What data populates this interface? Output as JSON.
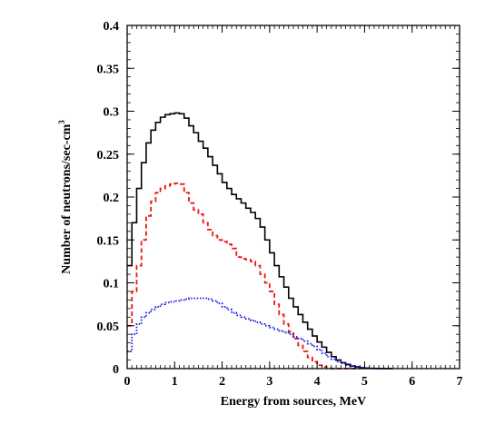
{
  "chart_data": {
    "type": "line",
    "title": "",
    "xlabel": "Energy from sources, MeV",
    "ylabel_main": "Number of neutrons/sec-cm",
    "ylabel_sup": "3",
    "xlim": [
      0,
      7
    ],
    "ylim": [
      0,
      0.4
    ],
    "x_ticks": [
      "0",
      "1",
      "2",
      "3",
      "4",
      "5",
      "6",
      "7"
    ],
    "y_ticks": [
      "0",
      "0.05",
      "0.1",
      "0.15",
      "0.2",
      "0.25",
      "0.3",
      "0.35",
      "0.4"
    ],
    "bin_width": 0.1,
    "grid": false,
    "series": [
      {
        "color": "#000000",
        "style": "solid",
        "x": [
          0.0,
          0.1,
          0.2,
          0.3,
          0.4,
          0.5,
          0.6,
          0.7,
          0.8,
          0.9,
          1.0,
          1.1,
          1.2,
          1.3,
          1.4,
          1.5,
          1.6,
          1.7,
          1.8,
          1.9,
          2.0,
          2.1,
          2.2,
          2.3,
          2.4,
          2.5,
          2.6,
          2.7,
          2.8,
          2.9,
          3.0,
          3.1,
          3.2,
          3.3,
          3.4,
          3.5,
          3.6,
          3.7,
          3.8,
          3.9,
          4.0,
          4.1,
          4.2,
          4.3,
          4.4,
          4.5,
          4.6,
          4.7,
          4.8,
          4.9,
          5.0,
          5.1,
          5.2,
          5.3,
          5.4,
          5.5
        ],
        "y": [
          0.12,
          0.17,
          0.21,
          0.24,
          0.263,
          0.278,
          0.287,
          0.293,
          0.296,
          0.297,
          0.298,
          0.297,
          0.292,
          0.283,
          0.275,
          0.265,
          0.257,
          0.247,
          0.237,
          0.227,
          0.217,
          0.21,
          0.203,
          0.198,
          0.193,
          0.187,
          0.182,
          0.175,
          0.165,
          0.15,
          0.135,
          0.12,
          0.107,
          0.095,
          0.082,
          0.072,
          0.063,
          0.054,
          0.046,
          0.038,
          0.031,
          0.025,
          0.019,
          0.014,
          0.01,
          0.007,
          0.005,
          0.003,
          0.002,
          0.001,
          0.0006,
          0.0003,
          0.0002,
          0.0001,
          5e-05,
          0.0
        ]
      },
      {
        "color": "#e8180f",
        "style": "dashed",
        "x": [
          0.0,
          0.1,
          0.2,
          0.3,
          0.4,
          0.5,
          0.6,
          0.7,
          0.8,
          0.9,
          1.0,
          1.1,
          1.2,
          1.3,
          1.4,
          1.5,
          1.6,
          1.7,
          1.8,
          1.9,
          2.0,
          2.1,
          2.2,
          2.3,
          2.4,
          2.5,
          2.6,
          2.7,
          2.8,
          2.9,
          3.0,
          3.1,
          3.2,
          3.3,
          3.4,
          3.5,
          3.6,
          3.7,
          3.8,
          3.9,
          4.0,
          4.1,
          4.2,
          4.3,
          4.4,
          4.5,
          4.6,
          4.7,
          4.8
        ],
        "y": [
          0.05,
          0.09,
          0.12,
          0.15,
          0.178,
          0.195,
          0.205,
          0.21,
          0.213,
          0.215,
          0.216,
          0.215,
          0.205,
          0.193,
          0.185,
          0.18,
          0.17,
          0.162,
          0.155,
          0.15,
          0.148,
          0.145,
          0.14,
          0.13,
          0.128,
          0.127,
          0.125,
          0.12,
          0.11,
          0.1,
          0.09,
          0.075,
          0.063,
          0.052,
          0.043,
          0.035,
          0.027,
          0.02,
          0.013,
          0.008,
          0.004,
          0.002,
          0.0005,
          0.0,
          0.0,
          0.0,
          0.0,
          0.0,
          0.0
        ]
      },
      {
        "color": "#1515e0",
        "style": "dotted",
        "x": [
          0.0,
          0.1,
          0.2,
          0.3,
          0.4,
          0.5,
          0.6,
          0.7,
          0.8,
          0.9,
          1.0,
          1.1,
          1.2,
          1.3,
          1.4,
          1.5,
          1.6,
          1.7,
          1.8,
          1.9,
          2.0,
          2.1,
          2.2,
          2.3,
          2.4,
          2.5,
          2.6,
          2.7,
          2.8,
          2.9,
          3.0,
          3.1,
          3.2,
          3.3,
          3.4,
          3.5,
          3.6,
          3.7,
          3.8,
          3.9,
          4.0,
          4.1,
          4.2,
          4.3,
          4.4,
          4.5,
          4.6,
          4.7,
          4.8,
          4.9,
          5.0,
          5.1,
          5.2,
          5.3,
          5.4,
          5.5
        ],
        "y": [
          0.02,
          0.04,
          0.052,
          0.06,
          0.065,
          0.069,
          0.072,
          0.075,
          0.077,
          0.078,
          0.079,
          0.08,
          0.081,
          0.082,
          0.082,
          0.082,
          0.082,
          0.081,
          0.079,
          0.076,
          0.072,
          0.069,
          0.065,
          0.062,
          0.06,
          0.058,
          0.056,
          0.054,
          0.052,
          0.05,
          0.048,
          0.046,
          0.044,
          0.042,
          0.04,
          0.037,
          0.035,
          0.032,
          0.029,
          0.026,
          0.022,
          0.018,
          0.014,
          0.011,
          0.008,
          0.006,
          0.004,
          0.003,
          0.002,
          0.001,
          0.0006,
          0.0003,
          0.0002,
          0.0001,
          5e-05,
          0.0
        ]
      }
    ]
  }
}
